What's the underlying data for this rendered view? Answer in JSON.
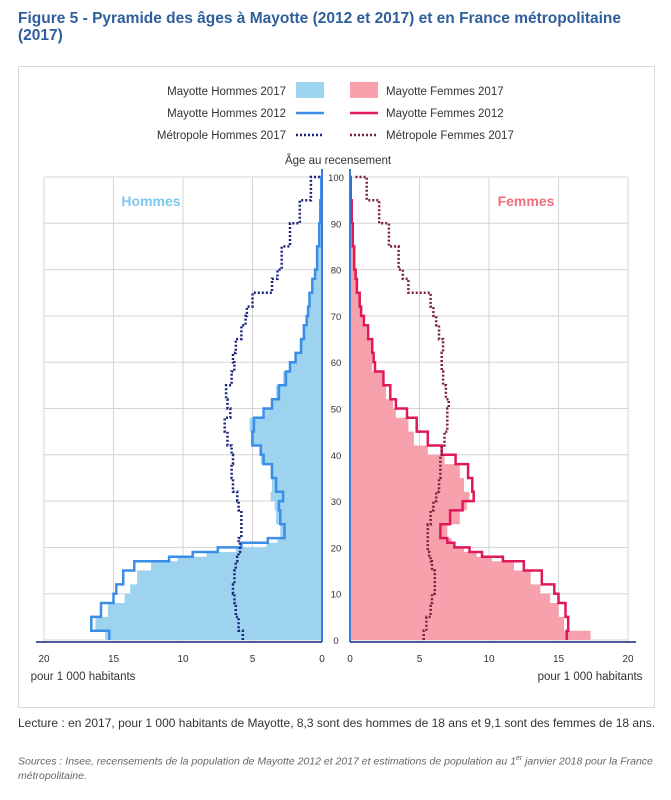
{
  "title": "Figure 5 - Pyramide des âges à Mayotte (2012 et 2017) et en France métropolitaine (2017)",
  "reading_note": "Lecture : en 2017, pour 1 000 habitants de Mayotte, 8,3 sont des hommes de 18 ans et 9,1 sont des femmes de 18 ans.",
  "sources": {
    "before": "Sources : Insee, recensements de la population de Mayotte 2012 et 2017 et estimations de population au 1",
    "sup": "er",
    "after": " janvier 2018 pour la France métropolitaine."
  },
  "colors": {
    "hommes_2017_fill": "#9dd3ee",
    "hommes_2012_line": "#3a8ee6",
    "hommes_metro_line": "#1a237e",
    "femmes_2017_fill": "#f7a1ac",
    "femmes_2012_line": "#e0195a",
    "femmes_metro_line": "#7a1f3d",
    "axis_line": "#3a7bd5",
    "grid": "#d5d5d5",
    "label_hommes": "#7ec8ec",
    "label_femmes": "#f26d7d"
  },
  "chart_data": {
    "type": "population-pyramid",
    "axis_title": "Âge au recensement",
    "x_label_left": "pour 1 000 habitants",
    "x_label_right": "pour 1 000 habitants",
    "side_left_label": "Hommes",
    "side_right_label": "Femmes",
    "x_range": [
      0,
      20
    ],
    "x_ticks": [
      20,
      15,
      10,
      5,
      0
    ],
    "y_range": [
      0,
      100
    ],
    "y_ticks": [
      0,
      10,
      20,
      30,
      40,
      50,
      60,
      70,
      80,
      90,
      100
    ],
    "grid": true,
    "legend_position": "top",
    "legend": [
      {
        "label": "Mayotte Hommes 2017",
        "style": "area",
        "series": "hommes_2017"
      },
      {
        "label": "Mayotte Femmes 2017",
        "style": "area",
        "series": "femmes_2017"
      },
      {
        "label": "Mayotte Hommes 2012",
        "style": "solid",
        "series": "hommes_2012"
      },
      {
        "label": "Mayotte Femmes 2012",
        "style": "solid",
        "series": "femmes_2012"
      },
      {
        "label": "Métropole Hommes 2017",
        "style": "dotted",
        "series": "hommes_metro"
      },
      {
        "label": "Métropole Femmes 2017",
        "style": "dotted",
        "series": "femmes_metro"
      }
    ],
    "ages": [
      0,
      2,
      5,
      8,
      10,
      12,
      15,
      17,
      18,
      19,
      20,
      21,
      22,
      25,
      28,
      30,
      32,
      35,
      38,
      40,
      42,
      45,
      48,
      50,
      52,
      55,
      58,
      60,
      62,
      65,
      68,
      70,
      72,
      75,
      78,
      80,
      85,
      90,
      95,
      100
    ],
    "series": {
      "hommes_2017": [
        15.6,
        16.3,
        15.4,
        14.2,
        13.8,
        13.3,
        12.3,
        10.4,
        8.3,
        6.2,
        4.0,
        3.2,
        3.0,
        3.3,
        3.4,
        3.7,
        3.6,
        3.7,
        4.4,
        4.5,
        5.1,
        5.2,
        4.1,
        3.6,
        3.3,
        2.8,
        2.3,
        1.9,
        1.6,
        1.4,
        1.1,
        1.0,
        0.9,
        0.7,
        0.5,
        0.4,
        0.25,
        0.15,
        0.08,
        0.03
      ],
      "femmes_2017": [
        17.3,
        15.4,
        15.0,
        14.4,
        13.7,
        13.0,
        11.8,
        10.2,
        9.1,
        8.2,
        7.6,
        7.3,
        7.0,
        7.9,
        8.4,
        8.6,
        8.2,
        7.9,
        6.8,
        5.6,
        4.6,
        4.2,
        3.3,
        3.1,
        2.6,
        2.3,
        1.6,
        1.6,
        1.5,
        1.2,
        0.9,
        0.8,
        0.7,
        0.5,
        0.4,
        0.3,
        0.2,
        0.12,
        0.06,
        0.02
      ],
      "hommes_2012": [
        15.3,
        16.6,
        15.9,
        15.0,
        14.8,
        14.3,
        13.5,
        11.0,
        9.3,
        7.5,
        5.8,
        3.9,
        2.7,
        3.0,
        3.1,
        2.8,
        3.3,
        3.6,
        4.2,
        4.4,
        5.0,
        4.9,
        4.2,
        3.6,
        3.1,
        2.6,
        2.3,
        1.9,
        1.5,
        1.3,
        1.1,
        1.0,
        0.9,
        0.7,
        0.5,
        0.35,
        0.2,
        0.12,
        0.05,
        0.02
      ],
      "femmes_2012": [
        15.6,
        15.7,
        15.5,
        15.0,
        14.7,
        13.8,
        12.5,
        11.0,
        9.5,
        8.6,
        7.5,
        7.0,
        6.5,
        7.2,
        8.1,
        8.9,
        8.8,
        8.5,
        7.6,
        6.6,
        5.6,
        4.8,
        4.1,
        3.3,
        2.9,
        2.4,
        1.8,
        1.7,
        1.6,
        1.3,
        1.0,
        0.8,
        0.7,
        0.5,
        0.4,
        0.3,
        0.2,
        0.12,
        0.05,
        0.02
      ],
      "hommes_metro": [
        5.7,
        6.0,
        6.2,
        6.3,
        6.4,
        6.3,
        6.2,
        6.1,
        6.0,
        5.9,
        5.9,
        6.0,
        5.8,
        5.8,
        6.0,
        6.1,
        6.4,
        6.5,
        6.4,
        6.5,
        6.8,
        7.0,
        6.6,
        6.8,
        6.9,
        6.5,
        6.3,
        6.4,
        6.2,
        5.8,
        5.5,
        5.4,
        5.0,
        3.6,
        3.2,
        2.9,
        2.3,
        1.6,
        0.8,
        0.15
      ],
      "femmes_metro": [
        5.3,
        5.5,
        5.8,
        5.9,
        6.1,
        6.1,
        5.9,
        5.8,
        5.7,
        5.6,
        5.6,
        5.6,
        5.6,
        5.8,
        6.0,
        6.2,
        6.4,
        6.5,
        6.5,
        6.6,
        6.8,
        7.0,
        7.0,
        7.1,
        6.9,
        6.7,
        6.6,
        6.6,
        6.7,
        6.4,
        6.2,
        6.0,
        5.8,
        4.2,
        3.8,
        3.5,
        2.8,
        2.1,
        1.2,
        0.25
      ]
    }
  }
}
